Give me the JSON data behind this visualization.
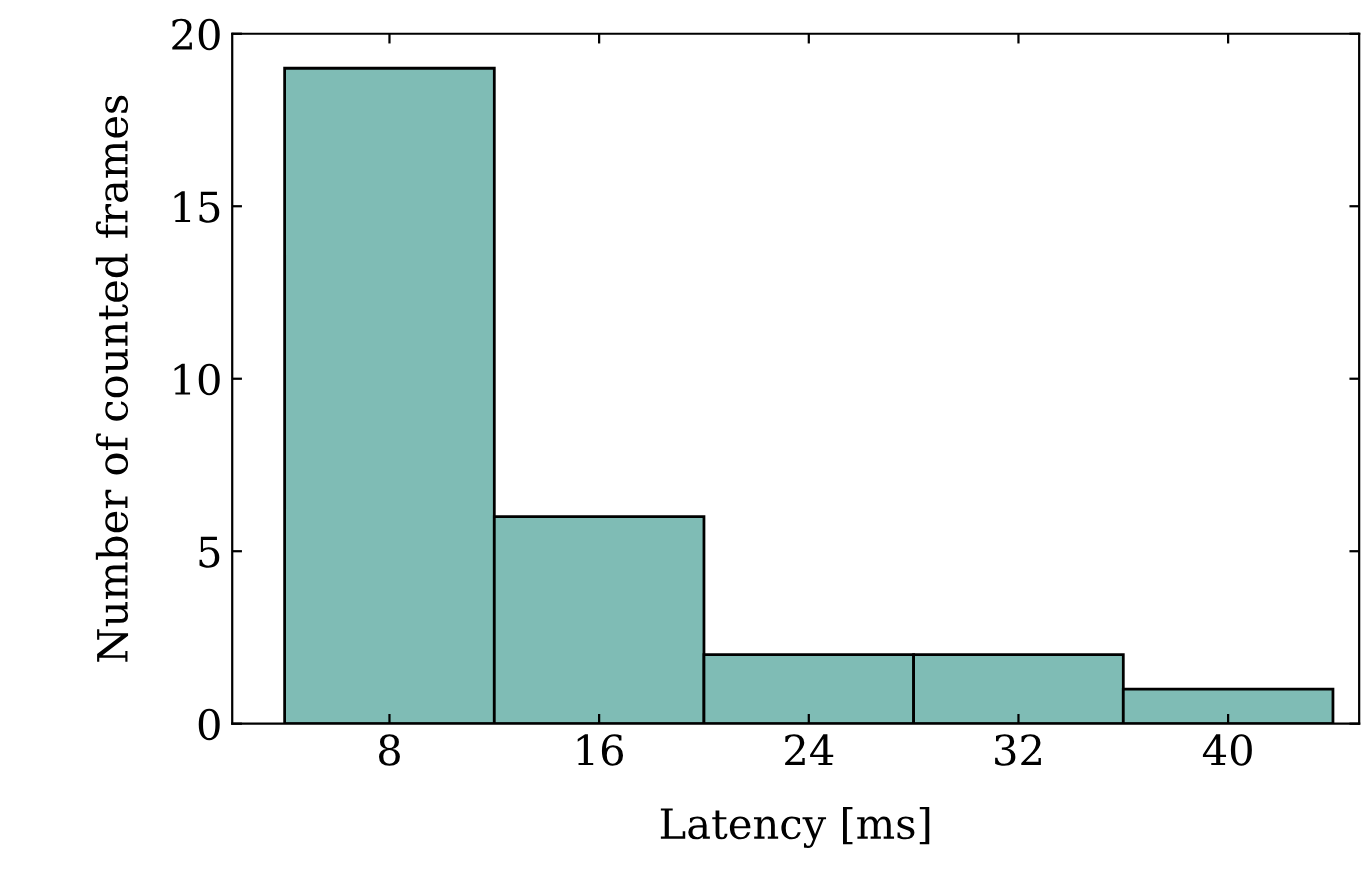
{
  "chart_data": {
    "type": "histogram",
    "xlabel": "Latency [ms]",
    "ylabel": "Number of counted frames",
    "bins": [
      4,
      12,
      20,
      28,
      36,
      44
    ],
    "values": [
      19,
      6,
      2,
      2,
      1
    ],
    "color": "#7fbcb5",
    "xlim": [
      2,
      45
    ],
    "xticks": [
      8,
      16,
      24,
      32,
      40
    ],
    "ylim": [
      0,
      20
    ],
    "yticks": [
      0,
      5,
      10,
      15,
      20
    ]
  }
}
